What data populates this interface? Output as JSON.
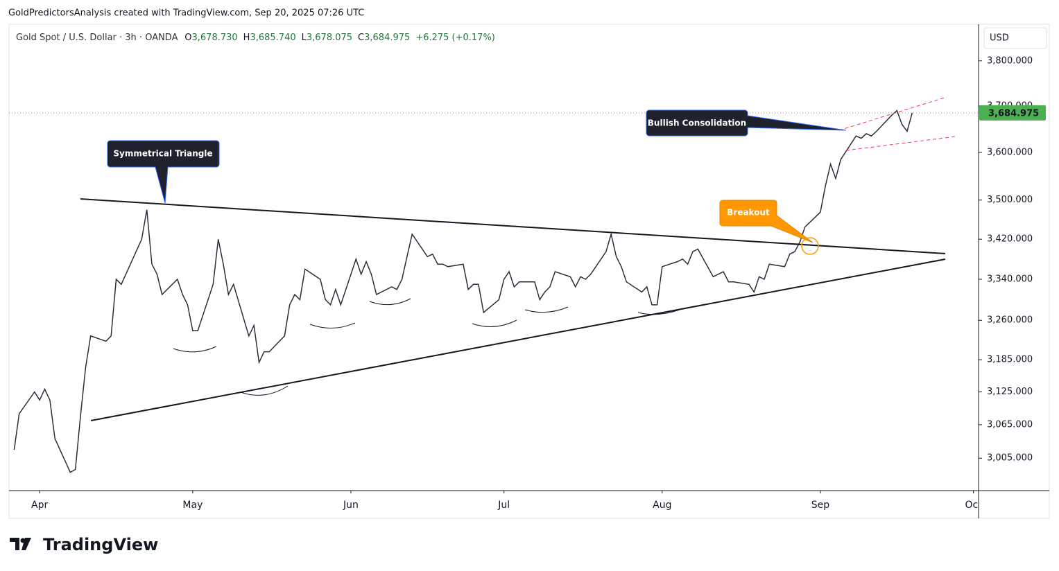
{
  "header": {
    "credit": "GoldPredictorsAnalysis created with TradingView.com, Sep 20, 2025 07:26 UTC"
  },
  "footer": {
    "brand": "TradingView"
  },
  "chart_data": {
    "type": "line",
    "title": "Gold Spot / U.S. Dollar · 3h · OANDA",
    "ohlc": [
      {
        "key": "O",
        "value": "3,678.730"
      },
      {
        "key": "H",
        "value": "3,685.740"
      },
      {
        "key": "L",
        "value": "3,678.075"
      },
      {
        "key": "C",
        "value": "3,684.975"
      }
    ],
    "change": "+6.275 (+0.17%)",
    "currency": "USD",
    "log_scale": true,
    "color": "#2a2e39",
    "last_price": {
      "value": 3684.975,
      "label": "3,684.975"
    },
    "last_price_color": "#4caf50",
    "annotations": [
      "Symmetrical Triangle",
      "Bullish Consolidation",
      "Breakout"
    ],
    "xlim": [
      "2025-03-26",
      "2025-10-02"
    ],
    "xticks": [
      {
        "value": "2025-04-01",
        "label": "Apr"
      },
      {
        "value": "2025-05-01",
        "label": "May"
      },
      {
        "value": "2025-06-01",
        "label": "Jun"
      },
      {
        "value": "2025-07-01",
        "label": "Jul"
      },
      {
        "value": "2025-08-01",
        "label": "Aug"
      },
      {
        "value": "2025-09-01",
        "label": "Sep"
      },
      {
        "value": "2025-10-01",
        "label": "Oct"
      }
    ],
    "ylim": [
      2948,
      3883
    ],
    "yticks": [
      {
        "value": 3800,
        "label": "3,800.000"
      },
      {
        "value": 3700,
        "label": "3,700.000"
      },
      {
        "value": 3600,
        "label": "3,600.000"
      },
      {
        "value": 3500,
        "label": "3,500.000"
      },
      {
        "value": 3420,
        "label": "3,420.000"
      },
      {
        "value": 3340,
        "label": "3,340.000"
      },
      {
        "value": 3260,
        "label": "3,260.000"
      },
      {
        "value": 3185,
        "label": "3,185.000"
      },
      {
        "value": 3125,
        "label": "3,125.000"
      },
      {
        "value": 3065,
        "label": "3,065.000"
      },
      {
        "value": 3005,
        "label": "3,005.000"
      }
    ],
    "x": [
      "2025-03-27",
      "2025-03-28",
      "2025-03-31",
      "2025-04-01",
      "2025-04-02",
      "2025-04-03",
      "2025-04-04",
      "2025-04-07",
      "2025-04-08",
      "2025-04-09",
      "2025-04-10",
      "2025-04-11",
      "2025-04-14",
      "2025-04-15",
      "2025-04-16",
      "2025-04-17",
      "2025-04-21",
      "2025-04-22",
      "2025-04-23",
      "2025-04-24",
      "2025-04-25",
      "2025-04-28",
      "2025-04-29",
      "2025-04-30",
      "2025-05-01",
      "2025-05-02",
      "2025-05-05",
      "2025-05-06",
      "2025-05-07",
      "2025-05-08",
      "2025-05-09",
      "2025-05-12",
      "2025-05-13",
      "2025-05-14",
      "2025-05-15",
      "2025-05-16",
      "2025-05-19",
      "2025-05-20",
      "2025-05-21",
      "2025-05-22",
      "2025-05-23",
      "2025-05-26",
      "2025-05-27",
      "2025-05-28",
      "2025-05-29",
      "2025-05-30",
      "2025-06-02",
      "2025-06-03",
      "2025-06-04",
      "2025-06-05",
      "2025-06-06",
      "2025-06-09",
      "2025-06-10",
      "2025-06-11",
      "2025-06-12",
      "2025-06-13",
      "2025-06-16",
      "2025-06-17",
      "2025-06-18",
      "2025-06-19",
      "2025-06-20",
      "2025-06-23",
      "2025-06-24",
      "2025-06-25",
      "2025-06-26",
      "2025-06-27",
      "2025-06-30",
      "2025-07-01",
      "2025-07-02",
      "2025-07-03",
      "2025-07-04",
      "2025-07-07",
      "2025-07-08",
      "2025-07-09",
      "2025-07-10",
      "2025-07-11",
      "2025-07-14",
      "2025-07-15",
      "2025-07-16",
      "2025-07-17",
      "2025-07-18",
      "2025-07-21",
      "2025-07-22",
      "2025-07-23",
      "2025-07-24",
      "2025-07-25",
      "2025-07-28",
      "2025-07-29",
      "2025-07-30",
      "2025-07-31",
      "2025-08-01",
      "2025-08-04",
      "2025-08-05",
      "2025-08-06",
      "2025-08-07",
      "2025-08-08",
      "2025-08-11",
      "2025-08-12",
      "2025-08-13",
      "2025-08-14",
      "2025-08-15",
      "2025-08-18",
      "2025-08-19",
      "2025-08-20",
      "2025-08-21",
      "2025-08-22",
      "2025-08-25",
      "2025-08-26",
      "2025-08-27",
      "2025-08-28",
      "2025-08-29",
      "2025-09-01",
      "2025-09-02",
      "2025-09-03",
      "2025-09-04",
      "2025-09-05",
      "2025-09-08",
      "2025-09-09",
      "2025-09-10",
      "2025-09-11",
      "2025-09-12",
      "2025-09-15",
      "2025-09-16",
      "2025-09-17",
      "2025-09-18",
      "2025-09-19"
    ],
    "values": [
      3020,
      3085,
      3125,
      3110,
      3130,
      3110,
      3040,
      2980,
      2985,
      3080,
      3170,
      3230,
      3220,
      3230,
      3340,
      3330,
      3420,
      3480,
      3370,
      3350,
      3310,
      3340,
      3310,
      3290,
      3240,
      3240,
      3330,
      3420,
      3370,
      3310,
      3330,
      3230,
      3250,
      3180,
      3200,
      3200,
      3230,
      3290,
      3310,
      3300,
      3360,
      3340,
      3300,
      3290,
      3320,
      3290,
      3380,
      3350,
      3375,
      3350,
      3310,
      3325,
      3320,
      3340,
      3385,
      3430,
      3385,
      3390,
      3370,
      3370,
      3365,
      3370,
      3320,
      3330,
      3330,
      3275,
      3300,
      3340,
      3355,
      3325,
      3335,
      3335,
      3300,
      3315,
      3325,
      3355,
      3345,
      3325,
      3345,
      3340,
      3350,
      3395,
      3430,
      3385,
      3365,
      3335,
      3315,
      3325,
      3290,
      3290,
      3365,
      3375,
      3380,
      3370,
      3395,
      3400,
      3345,
      3350,
      3355,
      3335,
      3335,
      3330,
      3315,
      3345,
      3340,
      3370,
      3365,
      3390,
      3395,
      3415,
      3445,
      3475,
      3530,
      3575,
      3545,
      3585,
      3635,
      3630,
      3640,
      3635,
      3645,
      3680,
      3690,
      3660,
      3645,
      3685
    ]
  }
}
